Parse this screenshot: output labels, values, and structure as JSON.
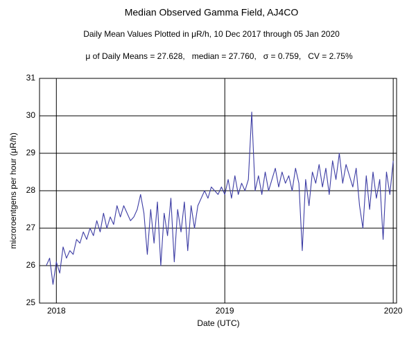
{
  "chart_data": {
    "type": "line",
    "title": "Median Observed Gamma Field, AJ4CO",
    "subtitle": "Daily Mean Values Plotted in μR/h, 10 Dec 2017 through 05 Jan 2020",
    "annotation": "μ of Daily Means = 27.628,   median = 27.760,   σ = 0.759,   CV = 2.75%",
    "x_label": "Date (UTC)",
    "y_label": "microroentgens per hour (μR/h)",
    "x": [
      2017.94,
      2017.96,
      2017.98,
      2018.0,
      2018.02,
      2018.04,
      2018.06,
      2018.08,
      2018.1,
      2018.12,
      2018.14,
      2018.16,
      2018.18,
      2018.2,
      2018.22,
      2018.24,
      2018.26,
      2018.28,
      2018.3,
      2018.32,
      2018.34,
      2018.36,
      2018.38,
      2018.4,
      2018.42,
      2018.44,
      2018.46,
      2018.48,
      2018.5,
      2018.52,
      2018.54,
      2018.56,
      2018.58,
      2018.6,
      2018.62,
      2018.64,
      2018.66,
      2018.68,
      2018.7,
      2018.72,
      2018.74,
      2018.76,
      2018.78,
      2018.8,
      2018.82,
      2018.84,
      2018.86,
      2018.88,
      2018.9,
      2018.92,
      2018.94,
      2018.96,
      2018.98,
      2019.0,
      2019.02,
      2019.04,
      2019.06,
      2019.08,
      2019.1,
      2019.12,
      2019.14,
      2019.16,
      2019.18,
      2019.2,
      2019.22,
      2019.24,
      2019.26,
      2019.28,
      2019.3,
      2019.32,
      2019.34,
      2019.36,
      2019.38,
      2019.4,
      2019.42,
      2019.44,
      2019.46,
      2019.48,
      2019.5,
      2019.52,
      2019.54,
      2019.56,
      2019.58,
      2019.6,
      2019.62,
      2019.64,
      2019.66,
      2019.68,
      2019.7,
      2019.72,
      2019.74,
      2019.76,
      2019.78,
      2019.8,
      2019.82,
      2019.84,
      2019.86,
      2019.88,
      2019.9,
      2019.92,
      2019.94,
      2019.96,
      2019.98,
      2020.0
    ],
    "series": [
      {
        "color": "#3b3ba3",
        "values": [
          26.0,
          26.2,
          25.5,
          26.1,
          25.8,
          26.5,
          26.2,
          26.4,
          26.3,
          26.7,
          26.6,
          26.9,
          26.7,
          27.0,
          26.8,
          27.2,
          26.9,
          27.4,
          27.0,
          27.3,
          27.1,
          27.6,
          27.3,
          27.6,
          27.4,
          27.2,
          27.3,
          27.5,
          27.9,
          27.4,
          26.3,
          27.5,
          26.6,
          27.7,
          26.0,
          27.4,
          26.8,
          27.8,
          26.1,
          27.5,
          26.9,
          27.7,
          26.4,
          27.6,
          27.0,
          27.6,
          27.8,
          28.0,
          27.8,
          28.1,
          28.0,
          27.9,
          28.1,
          27.9,
          28.3,
          27.8,
          28.4,
          27.9,
          28.2,
          28.0,
          28.3,
          30.1,
          28.0,
          28.4,
          27.9,
          28.5,
          28.0,
          28.3,
          28.6,
          28.1,
          28.5,
          28.2,
          28.4,
          28.0,
          28.6,
          28.2,
          26.4,
          28.3,
          27.6,
          28.5,
          28.2,
          28.7,
          28.1,
          28.6,
          27.9,
          28.8,
          28.3,
          29.0,
          28.2,
          28.7,
          28.4,
          28.1,
          28.6,
          27.6,
          27.0,
          28.4,
          27.5,
          28.5,
          27.8,
          28.3,
          26.7,
          28.5,
          27.9,
          28.8
        ]
      }
    ],
    "xlim": [
      2017.9,
      2020.02
    ],
    "xticks": [
      2018,
      2019,
      2020
    ],
    "ylim": [
      25,
      31
    ],
    "yticks": [
      25,
      26,
      27,
      28,
      29,
      30,
      31
    ],
    "grid": true
  }
}
